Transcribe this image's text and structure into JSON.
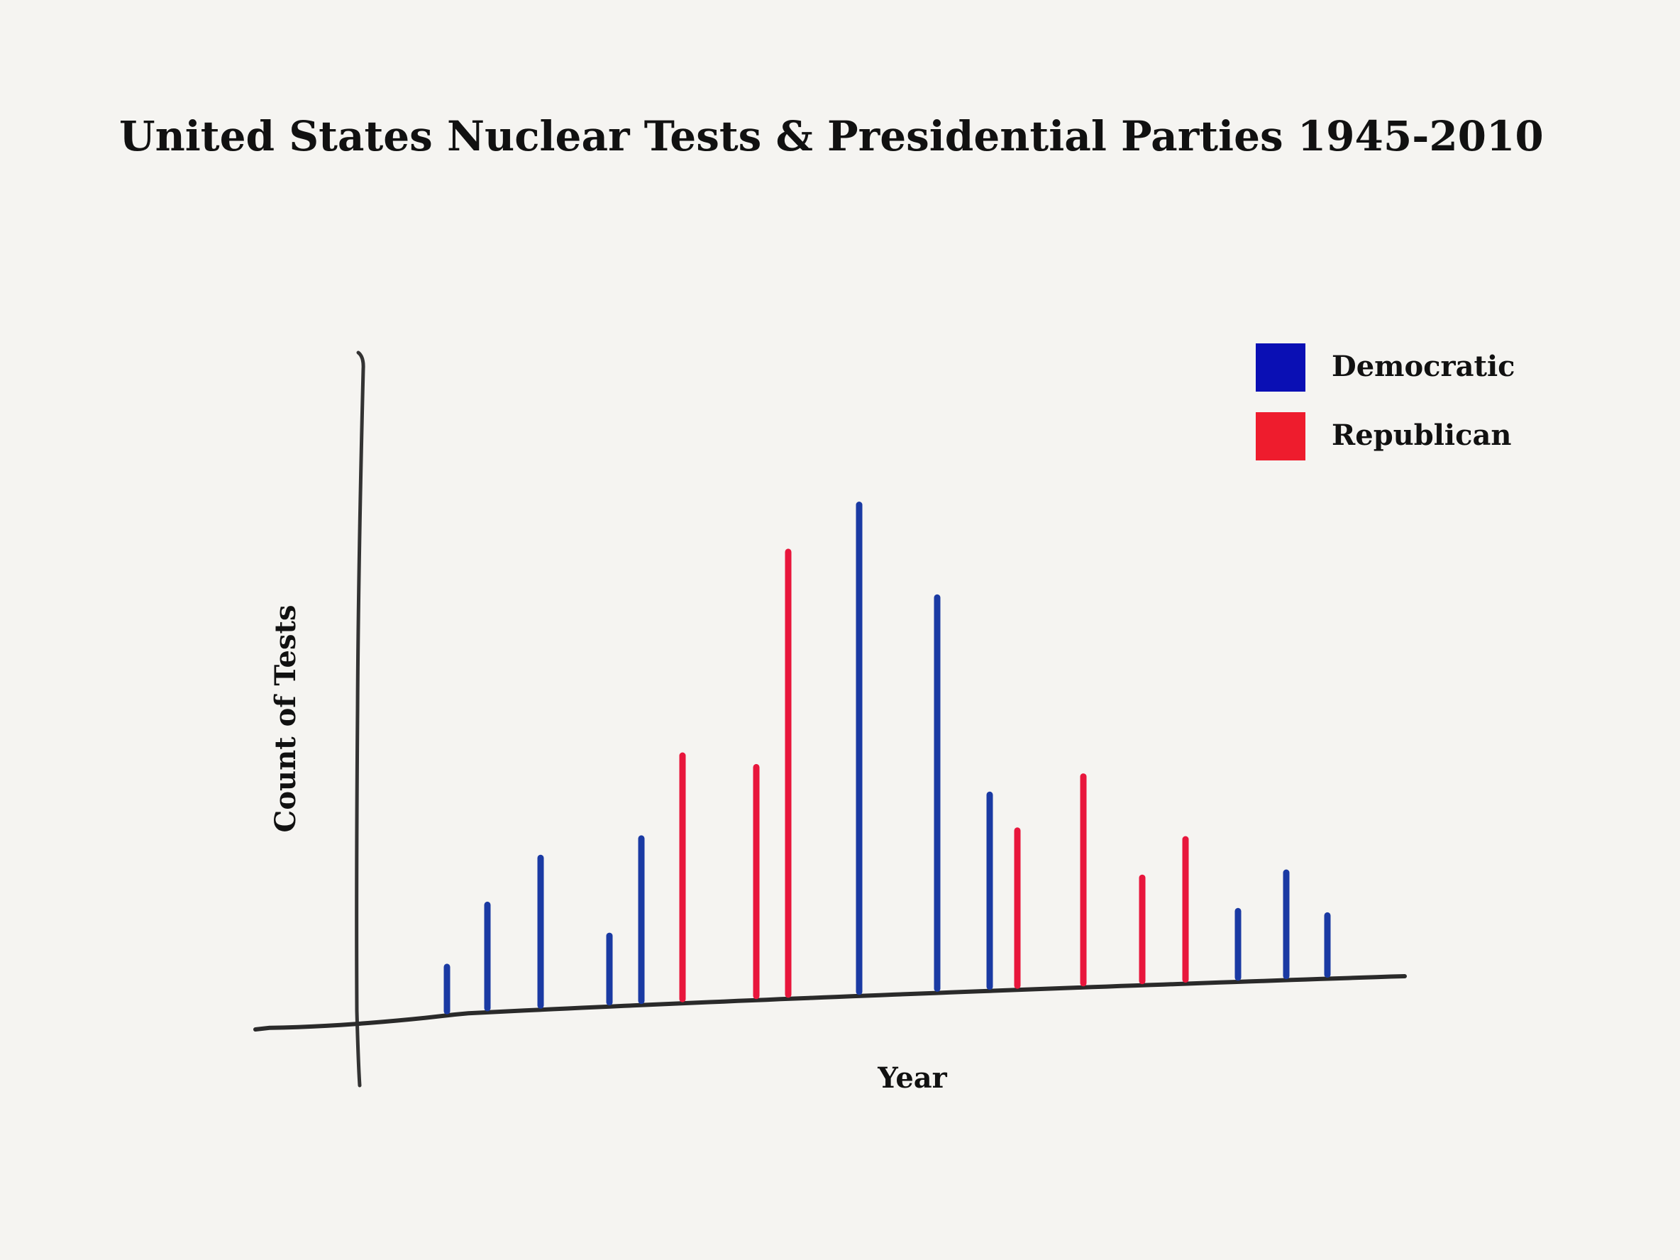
{
  "chart_data": {
    "type": "bar",
    "title": "United States Nuclear Tests & Presidential Parties 1945-2010",
    "xlabel": "Year",
    "ylabel": "Count of Tests",
    "legend_position": "top-right",
    "grid": false,
    "series": [
      {
        "name": "Democratic",
        "color": "#0a0fb4"
      },
      {
        "name": "Republican",
        "color": "#ee1c2d"
      }
    ],
    "bars": [
      {
        "party": "Democratic",
        "value": 6
      },
      {
        "party": "Democratic",
        "value": 14
      },
      {
        "party": "Democratic",
        "value": 20
      },
      {
        "party": "Democratic",
        "value": 9
      },
      {
        "party": "Democratic",
        "value": 22
      },
      {
        "party": "Republican",
        "value": 33
      },
      {
        "party": "Republican",
        "value": 31
      },
      {
        "party": "Republican",
        "value": 60
      },
      {
        "party": "Democratic",
        "value": 66
      },
      {
        "party": "Democratic",
        "value": 53
      },
      {
        "party": "Democratic",
        "value": 26
      },
      {
        "party": "Republican",
        "value": 21
      },
      {
        "party": "Republican",
        "value": 28
      },
      {
        "party": "Republican",
        "value": 14
      },
      {
        "party": "Republican",
        "value": 19
      },
      {
        "party": "Democratic",
        "value": 9
      },
      {
        "party": "Democratic",
        "value": 14
      },
      {
        "party": "Democratic",
        "value": 8
      }
    ]
  }
}
